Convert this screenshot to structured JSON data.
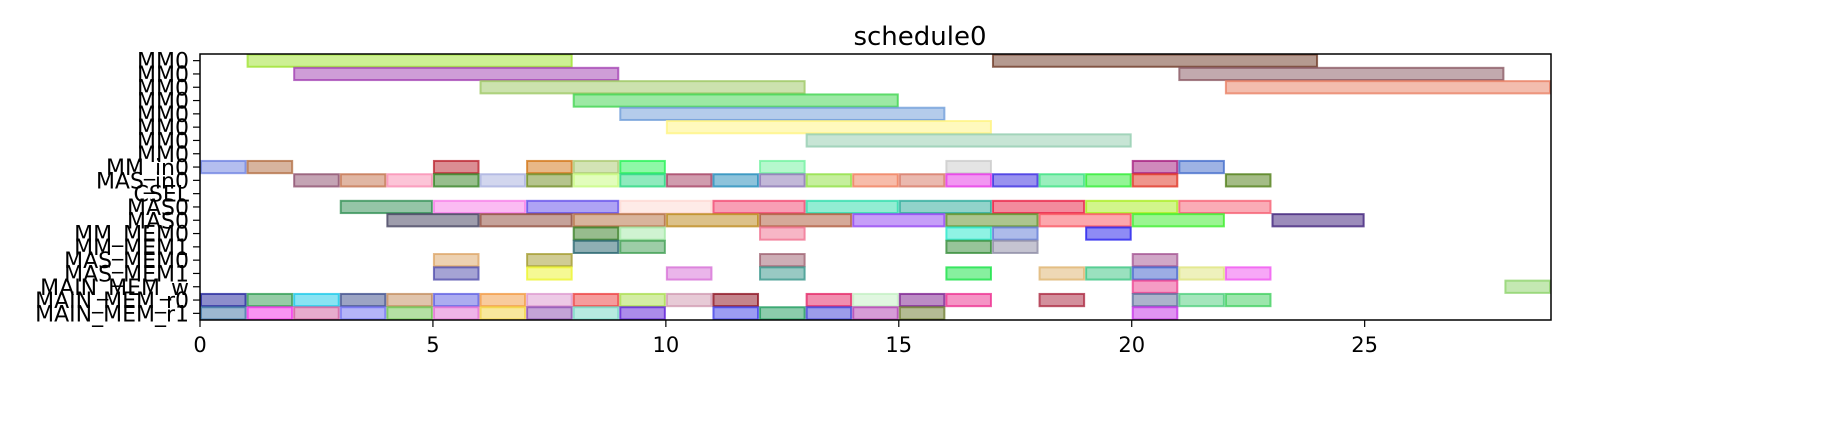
{
  "chart_data": {
    "type": "gantt",
    "title": "schedule0",
    "xlabel": "",
    "ylabel": "",
    "xlim": [
      0,
      29
    ],
    "xticks": [
      0,
      5,
      10,
      15,
      20,
      25
    ],
    "grid": false,
    "rows": [
      "MM0",
      "MM0",
      "MM0",
      "MM0",
      "MM0",
      "MM0",
      "MM0",
      "MM0",
      "MM_in0",
      "MAS_in0",
      "CSEL",
      "MAS0",
      "MAS0",
      "MM_MEM0",
      "MM_MEM1",
      "MAS_MEM0",
      "MAS_MEM1",
      "MAIN_MEM_w",
      "MAIN_MEM_r0",
      "MAIN_MEM_r1"
    ],
    "tasks": [
      {
        "row": 0,
        "start": 1,
        "end": 8,
        "color": "#9be22a"
      },
      {
        "row": 0,
        "start": 17,
        "end": 24,
        "color": "#6b3522"
      },
      {
        "row": 1,
        "start": 2,
        "end": 9,
        "color": "#a03bb0"
      },
      {
        "row": 1,
        "start": 21,
        "end": 28,
        "color": "#85535d"
      },
      {
        "row": 2,
        "start": 6,
        "end": 13,
        "color": "#9ac55e"
      },
      {
        "row": 2,
        "start": 22,
        "end": 29,
        "color": "#e87b5d"
      },
      {
        "row": 3,
        "start": 8,
        "end": 15,
        "color": "#3ad34a"
      },
      {
        "row": 4,
        "start": 9,
        "end": 16,
        "color": "#6a99d8"
      },
      {
        "row": 5,
        "start": 10,
        "end": 17,
        "color": "#fff37c"
      },
      {
        "row": 6,
        "start": 13,
        "end": 20,
        "color": "#8fcbac"
      },
      {
        "row": 8,
        "start": 0,
        "end": 1,
        "color": "#6a7de0"
      },
      {
        "row": 8,
        "start": 1,
        "end": 2,
        "color": "#b06a3d"
      },
      {
        "row": 8,
        "start": 5,
        "end": 6,
        "color": "#b81c28"
      },
      {
        "row": 8,
        "start": 7,
        "end": 8,
        "color": "#d2720f"
      },
      {
        "row": 8,
        "start": 8,
        "end": 9,
        "color": "#a8c76c"
      },
      {
        "row": 8,
        "start": 9,
        "end": 10,
        "color": "#1ef24f"
      },
      {
        "row": 8,
        "start": 12,
        "end": 13,
        "color": "#6cf29c"
      },
      {
        "row": 8,
        "start": 16,
        "end": 17,
        "color": "#c9c9c9"
      },
      {
        "row": 8,
        "start": 20,
        "end": 21,
        "color": "#a1137a"
      },
      {
        "row": 8,
        "start": 21,
        "end": 22,
        "color": "#3d68c9"
      },
      {
        "row": 9,
        "start": 2,
        "end": 3,
        "color": "#8a4a6a"
      },
      {
        "row": 9,
        "start": 3,
        "end": 4,
        "color": "#c26e48"
      },
      {
        "row": 9,
        "start": 4,
        "end": 5,
        "color": "#f98ab0"
      },
      {
        "row": 9,
        "start": 5,
        "end": 6,
        "color": "#2f7d1c"
      },
      {
        "row": 9,
        "start": 6,
        "end": 7,
        "color": "#a5aede"
      },
      {
        "row": 9,
        "start": 7,
        "end": 8,
        "color": "#6b8a1c"
      },
      {
        "row": 9,
        "start": 8,
        "end": 9,
        "color": "#c6fb7a"
      },
      {
        "row": 9,
        "start": 9,
        "end": 10,
        "color": "#1fd67b"
      },
      {
        "row": 9,
        "start": 10,
        "end": 11,
        "color": "#a13a5e"
      },
      {
        "row": 9,
        "start": 11,
        "end": 12,
        "color": "#1b88b8"
      },
      {
        "row": 9,
        "start": 12,
        "end": 13,
        "color": "#8672b2"
      },
      {
        "row": 9,
        "start": 13,
        "end": 14,
        "color": "#8cdf3c"
      },
      {
        "row": 9,
        "start": 14,
        "end": 15,
        "color": "#f07a55"
      },
      {
        "row": 9,
        "start": 15,
        "end": 16,
        "color": "#d6735f"
      },
      {
        "row": 9,
        "start": 16,
        "end": 17,
        "color": "#e52ee6"
      },
      {
        "row": 9,
        "start": 17,
        "end": 18,
        "color": "#3426e0"
      },
      {
        "row": 9,
        "start": 18,
        "end": 19,
        "color": "#34e07c"
      },
      {
        "row": 9,
        "start": 19,
        "end": 20,
        "color": "#27eb2c"
      },
      {
        "row": 9,
        "start": 20,
        "end": 21,
        "color": "#df2b1a"
      },
      {
        "row": 9,
        "start": 22,
        "end": 23,
        "color": "#4a7a0e"
      },
      {
        "row": 11,
        "start": 3,
        "end": 5,
        "color": "#2c8c4f"
      },
      {
        "row": 11,
        "start": 5,
        "end": 7,
        "color": "#f778e8"
      },
      {
        "row": 11,
        "start": 7,
        "end": 9,
        "color": "#5d48ea"
      },
      {
        "row": 11,
        "start": 9,
        "end": 11,
        "color": "#fdd7d0"
      },
      {
        "row": 11,
        "start": 11,
        "end": 13,
        "color": "#f2406b"
      },
      {
        "row": 11,
        "start": 13,
        "end": 15,
        "color": "#25dba8"
      },
      {
        "row": 11,
        "start": 15,
        "end": 17,
        "color": "#24a896"
      },
      {
        "row": 11,
        "start": 17,
        "end": 19,
        "color": "#e8173c"
      },
      {
        "row": 11,
        "start": 19,
        "end": 21,
        "color": "#a6ec17"
      },
      {
        "row": 11,
        "start": 21,
        "end": 23,
        "color": "#f6596e"
      },
      {
        "row": 12,
        "start": 4,
        "end": 6,
        "color": "#3d3c59"
      },
      {
        "row": 12,
        "start": 6,
        "end": 8,
        "color": "#8c4536"
      },
      {
        "row": 12,
        "start": 8,
        "end": 10,
        "color": "#b26a3a"
      },
      {
        "row": 12,
        "start": 10,
        "end": 12,
        "color": "#b98413"
      },
      {
        "row": 12,
        "start": 12,
        "end": 14,
        "color": "#ac5434"
      },
      {
        "row": 12,
        "start": 14,
        "end": 16,
        "color": "#8d3df2"
      },
      {
        "row": 12,
        "start": 16,
        "end": 18,
        "color": "#5a8c1f"
      },
      {
        "row": 12,
        "start": 18,
        "end": 20,
        "color": "#fa4f5b"
      },
      {
        "row": 12,
        "start": 20,
        "end": 22,
        "color": "#35ec24"
      },
      {
        "row": 12,
        "start": 23,
        "end": 25,
        "color": "#391a77"
      },
      {
        "row": 13,
        "start": 8,
        "end": 9,
        "color": "#2f7a1b"
      },
      {
        "row": 13,
        "start": 9,
        "end": 10,
        "color": "#a0e8a3"
      },
      {
        "row": 13,
        "start": 12,
        "end": 13,
        "color": "#f06e8e"
      },
      {
        "row": 13,
        "start": 16,
        "end": 17,
        "color": "#20e8c9"
      },
      {
        "row": 13,
        "start": 17,
        "end": 18,
        "color": "#5c77d6"
      },
      {
        "row": 13,
        "start": 19,
        "end": 20,
        "color": "#1d18ec"
      },
      {
        "row": 14,
        "start": 8,
        "end": 9,
        "color": "#1f5f6a"
      },
      {
        "row": 14,
        "start": 9,
        "end": 10,
        "color": "#3c9c4f"
      },
      {
        "row": 14,
        "start": 16,
        "end": 17,
        "color": "#2f8a33"
      },
      {
        "row": 14,
        "start": 17,
        "end": 18,
        "color": "#8b8aa3"
      },
      {
        "row": 15,
        "start": 5,
        "end": 6,
        "color": "#dca363"
      },
      {
        "row": 15,
        "start": 7,
        "end": 8,
        "color": "#a29a2a"
      },
      {
        "row": 15,
        "start": 12,
        "end": 13,
        "color": "#9c5d6d"
      },
      {
        "row": 15,
        "start": 20,
        "end": 21,
        "color": "#a25090"
      },
      {
        "row": 16,
        "start": 5,
        "end": 6,
        "color": "#4b47a9"
      },
      {
        "row": 16,
        "start": 7,
        "end": 8,
        "color": "#ecf42a"
      },
      {
        "row": 16,
        "start": 10,
        "end": 11,
        "color": "#d56bd6"
      },
      {
        "row": 16,
        "start": 12,
        "end": 13,
        "color": "#329387"
      },
      {
        "row": 16,
        "start": 16,
        "end": 17,
        "color": "#10e240"
      },
      {
        "row": 16,
        "start": 18,
        "end": 19,
        "color": "#deb26b"
      },
      {
        "row": 16,
        "start": 19,
        "end": 20,
        "color": "#35c37f"
      },
      {
        "row": 16,
        "start": 20,
        "end": 21,
        "color": "#3a5cc9"
      },
      {
        "row": 16,
        "start": 21,
        "end": 22,
        "color": "#dde37a"
      },
      {
        "row": 16,
        "start": 22,
        "end": 23,
        "color": "#f04ff0"
      },
      {
        "row": 17,
        "start": 20,
        "end": 21,
        "color": "#ec3a8c"
      },
      {
        "row": 17,
        "start": 28,
        "end": 29,
        "color": "#8ad166"
      },
      {
        "row": 18,
        "start": 0,
        "end": 1,
        "color": "#1b1e9a"
      },
      {
        "row": 18,
        "start": 1,
        "end": 2,
        "color": "#2b9a4e"
      },
      {
        "row": 18,
        "start": 2,
        "end": 3,
        "color": "#14c7e8"
      },
      {
        "row": 18,
        "start": 3,
        "end": 4,
        "color": "#3a4a8a"
      },
      {
        "row": 18,
        "start": 4,
        "end": 5,
        "color": "#c28a5a"
      },
      {
        "row": 18,
        "start": 5,
        "end": 6,
        "color": "#5a5ae2"
      },
      {
        "row": 18,
        "start": 6,
        "end": 7,
        "color": "#f2973c"
      },
      {
        "row": 18,
        "start": 7,
        "end": 8,
        "color": "#dc96cd"
      },
      {
        "row": 18,
        "start": 8,
        "end": 9,
        "color": "#ec3a3a"
      },
      {
        "row": 18,
        "start": 9,
        "end": 10,
        "color": "#a8dc4a"
      },
      {
        "row": 18,
        "start": 10,
        "end": 11,
        "color": "#cf95ad"
      },
      {
        "row": 18,
        "start": 11,
        "end": 12,
        "color": "#8a0a1a"
      },
      {
        "row": 18,
        "start": 13,
        "end": 14,
        "color": "#e31d60"
      },
      {
        "row": 18,
        "start": 14,
        "end": 15,
        "color": "#c2efc2"
      },
      {
        "row": 18,
        "start": 15,
        "end": 16,
        "color": "#7a1a8c"
      },
      {
        "row": 18,
        "start": 16,
        "end": 17,
        "color": "#ec2a8c"
      },
      {
        "row": 18,
        "start": 18,
        "end": 19,
        "color": "#a8203a"
      },
      {
        "row": 18,
        "start": 20,
        "end": 21,
        "color": "#5a6a9a"
      },
      {
        "row": 18,
        "start": 21,
        "end": 22,
        "color": "#4ace7a"
      },
      {
        "row": 18,
        "start": 22,
        "end": 23,
        "color": "#3acd5a"
      },
      {
        "row": 19,
        "start": 0,
        "end": 1,
        "color": "#3a72a3"
      },
      {
        "row": 19,
        "start": 1,
        "end": 2,
        "color": "#f22ae6"
      },
      {
        "row": 19,
        "start": 2,
        "end": 3,
        "color": "#d05a9c"
      },
      {
        "row": 19,
        "start": 3,
        "end": 4,
        "color": "#6a6af2"
      },
      {
        "row": 19,
        "start": 4,
        "end": 5,
        "color": "#6ac24a"
      },
      {
        "row": 19,
        "start": 5,
        "end": 6,
        "color": "#e06ad2"
      },
      {
        "row": 19,
        "start": 6,
        "end": 7,
        "color": "#f2d23a"
      },
      {
        "row": 19,
        "start": 7,
        "end": 8,
        "color": "#8a4ab0"
      },
      {
        "row": 19,
        "start": 8,
        "end": 9,
        "color": "#6fd6c2"
      },
      {
        "row": 19,
        "start": 9,
        "end": 10,
        "color": "#5a1ad6"
      },
      {
        "row": 19,
        "start": 11,
        "end": 12,
        "color": "#3a3ae8"
      },
      {
        "row": 19,
        "start": 12,
        "end": 13,
        "color": "#1a9a5a"
      },
      {
        "row": 19,
        "start": 13,
        "end": 14,
        "color": "#3a3ad6"
      },
      {
        "row": 19,
        "start": 14,
        "end": 15,
        "color": "#b03ab0"
      },
      {
        "row": 19,
        "start": 15,
        "end": 16,
        "color": "#6a7a2a"
      },
      {
        "row": 19,
        "start": 20,
        "end": 21,
        "color": "#c22ae6"
      }
    ]
  }
}
